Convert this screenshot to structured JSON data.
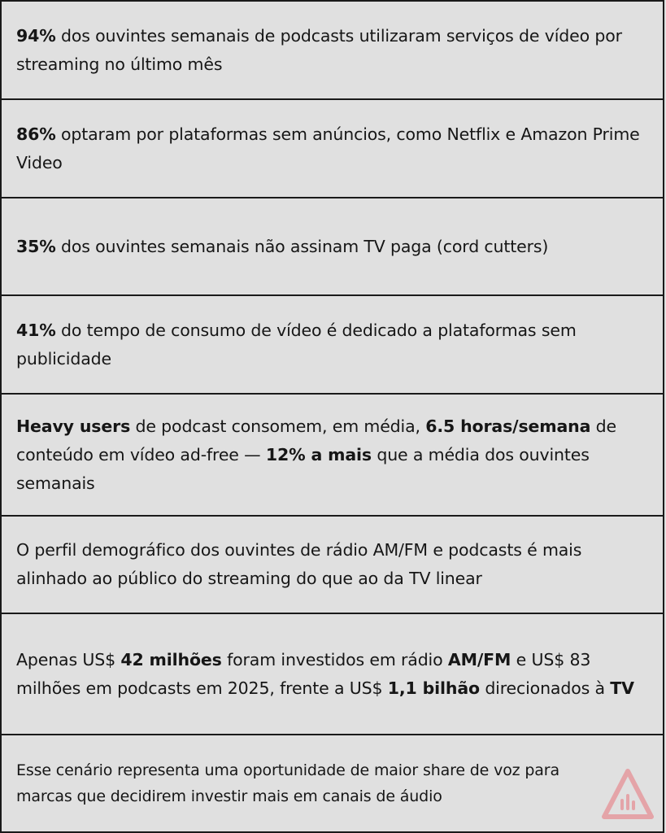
{
  "rows": [
    {
      "b1": "94%",
      "t1": " dos ouvintes semanais de podcasts utilizaram serviços de vídeo por streaming no último mês"
    },
    {
      "b1": "86%",
      "t1": " optaram por plataformas sem anúncios, como Netflix e Amazon Prime Video"
    },
    {
      "b1": "35%",
      "t1": " dos ouvintes semanais não assinam TV paga (cord cutters)"
    },
    {
      "b1": "41%",
      "t1": " do tempo de consumo de vídeo é dedicado a plataformas sem publicidade"
    },
    {
      "b1": "Heavy users",
      "t1": " de podcast consomem, em média, ",
      "b2": "6.5 horas/semana",
      "t2": " de conteúdo em vídeo ad-free — ",
      "b3": "12% a mais",
      "t3": " que a média dos ouvintes semanais"
    },
    {
      "t1": "O perfil demográfico dos ouvintes de rádio AM/FM e podcasts é mais alinhado ao público do streaming do que ao da TV linear"
    },
    {
      "t1": "Apenas US$ ",
      "b1": "42 milhões",
      "t2": " foram investidos em rádio ",
      "b2": "AM/FM",
      "t3": " e US$ 83 milhões em podcasts em 2025, frente a US$ ",
      "b3": "1,1 bilhão",
      "t4": " direcionados à ",
      "b4": "TV"
    },
    {
      "t1": "Esse cenário representa uma oportunidade de maior share de voz para marcas que decidirem investir mais em canais de áudio"
    }
  ],
  "logo": {
    "icon": "audio-waveform-logo-icon",
    "color": "#e8747c"
  }
}
